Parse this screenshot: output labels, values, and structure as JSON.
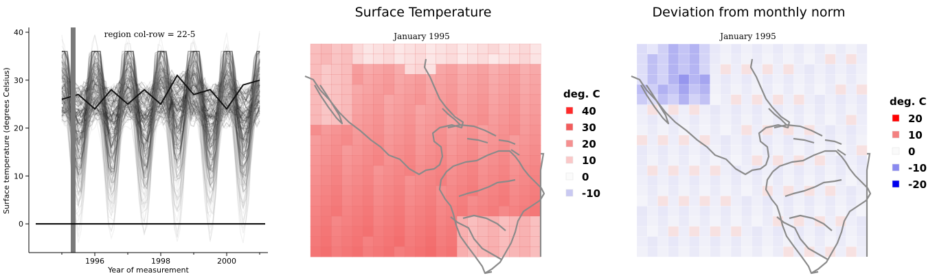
{
  "line_chart": {
    "subtitle": "region col-row = 22-5",
    "xlabel": "Year of measurement",
    "ylabel": "Surface temperature (degrees Celsius)",
    "x_ticks": [
      1996,
      1998,
      2000
    ],
    "y_ticks": [
      0,
      10,
      20,
      30,
      40
    ],
    "xlim": [
      1994.0,
      2001.25
    ],
    "ylim": [
      -6,
      41
    ],
    "cursor_year": 1995.0,
    "zero_line": 0
  },
  "map_left": {
    "title": "Surface Temperature",
    "subtitle": "January 1995",
    "legend_title": "deg. C",
    "legend": [
      {
        "label": "40",
        "color": "#ff2a2a"
      },
      {
        "label": "30",
        "color": "#f25c5c"
      },
      {
        "label": "20",
        "color": "#f59090"
      },
      {
        "label": "10",
        "color": "#fac8c8"
      },
      {
        "label": "0",
        "color": "#fbfbfb"
      },
      {
        "label": "-10",
        "color": "#c9c9f2"
      }
    ]
  },
  "map_right": {
    "title": "Deviation from monthly norm",
    "subtitle": "January 1995",
    "legend_title": "deg. C",
    "legend": [
      {
        "label": "20",
        "color": "#ff0000"
      },
      {
        "label": "10",
        "color": "#f38080"
      },
      {
        "label": "0",
        "color": "#fafafa"
      },
      {
        "label": "-10",
        "color": "#8a8af0"
      },
      {
        "label": "-20",
        "color": "#0000ee"
      }
    ]
  },
  "chart_data": [
    {
      "type": "line",
      "title": "",
      "subtitle": "region col-row = 22-5",
      "xlabel": "Year of measurement",
      "ylabel": "Surface temperature (degrees Celsius)",
      "xlim": [
        1994.0,
        2001.25
      ],
      "ylim": [
        -6,
        41
      ],
      "x_ticks": [
        1996,
        1998,
        2000
      ],
      "y_ticks": [
        0,
        10,
        20,
        30,
        40
      ],
      "series_note": "many overlaid monthly surface temperature traces per region, seasonal oscillation",
      "representative_series": [
        {
          "x": [
            1995.0,
            1995.5,
            1996.0,
            1996.5,
            1997.0,
            1997.5,
            1998.0,
            1998.5,
            1999.0,
            1999.5,
            2000.0,
            2000.5,
            2001.0
          ],
          "y": [
            26,
            27,
            24,
            28,
            25,
            28,
            25,
            31,
            27,
            28,
            24,
            29,
            30
          ]
        },
        {
          "x": [
            1995.0,
            1995.5,
            1996.0,
            1996.5,
            1997.0,
            1997.5,
            1998.0,
            1998.5,
            1999.0,
            1999.5,
            2000.0,
            2000.5,
            2001.0
          ],
          "y": [
            22,
            29,
            12,
            29,
            13,
            30,
            14,
            33,
            15,
            30,
            12,
            30,
            22
          ]
        }
      ]
    },
    {
      "type": "heatmap",
      "title": "Surface Temperature",
      "subtitle": "January 1995",
      "legend_title": "deg. C",
      "scale": [
        -10,
        0,
        10,
        20,
        30,
        40
      ],
      "grid": [
        22,
        21
      ],
      "value_range_approx": [
        -2,
        35
      ]
    },
    {
      "type": "heatmap",
      "title": "Deviation from monthly norm",
      "subtitle": "January 1995",
      "legend_title": "deg. C",
      "scale": [
        -20,
        -10,
        0,
        10,
        20
      ],
      "grid": [
        22,
        21
      ],
      "value_range_approx": [
        -12,
        4
      ]
    }
  ]
}
